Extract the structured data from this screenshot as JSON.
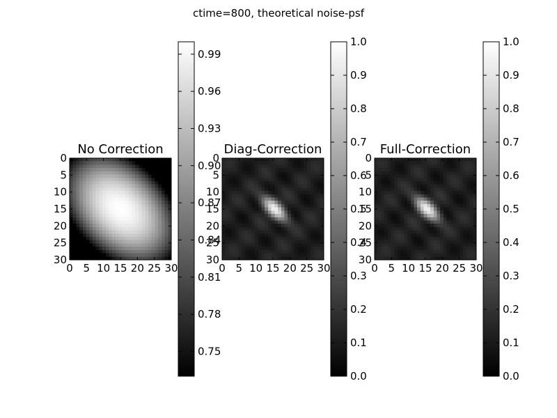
{
  "figure": {
    "suptitle": "ctime=800, theoretical noise-psf"
  },
  "chart_data": [
    {
      "type": "heatmap",
      "title": "No Correction",
      "colormap": "gray",
      "grid_size": [
        31,
        31
      ],
      "x_ticks": [
        0,
        5,
        10,
        15,
        20,
        25,
        30
      ],
      "y_ticks": [
        0,
        5,
        10,
        15,
        20,
        25,
        30
      ],
      "pattern": "broad bright blob centered near (15,15), elongated along the diagonal, values fall off toward the corners",
      "center": [
        15,
        15
      ],
      "value_range": [
        0.73,
        1.0
      ],
      "colorbar": {
        "ticks": [
          "0.75",
          "0.78",
          "0.81",
          "0.84",
          "0.87",
          "0.90",
          "0.93",
          "0.96",
          "0.99"
        ]
      }
    },
    {
      "type": "heatmap",
      "title": "Diag-Correction",
      "colormap": "gray",
      "grid_size": [
        31,
        31
      ],
      "x_ticks": [
        0,
        5,
        10,
        15,
        20,
        25,
        30
      ],
      "y_ticks": [
        0,
        5,
        10,
        15,
        20,
        25,
        30
      ],
      "pattern": "narrow bright elongated peak at center (~15,15) with faint diagonal ripples on dark background",
      "center": [
        15,
        15
      ],
      "value_range": [
        0.0,
        1.0
      ],
      "colorbar": {
        "ticks": [
          "0.0",
          "0.1",
          "0.2",
          "0.3",
          "0.4",
          "0.5",
          "0.6",
          "0.7",
          "0.8",
          "0.9",
          "1.0"
        ]
      }
    },
    {
      "type": "heatmap",
      "title": "Full-Correction",
      "colormap": "gray",
      "grid_size": [
        31,
        31
      ],
      "x_ticks": [
        0,
        5,
        10,
        15,
        20,
        25,
        30
      ],
      "y_ticks": [
        0,
        5,
        10,
        15,
        20,
        25,
        30
      ],
      "pattern": "narrow bright elongated peak at center (~15,15) with faint diagonal ripples on dark background",
      "center": [
        15,
        15
      ],
      "value_range": [
        0.0,
        1.0
      ],
      "colorbar": {
        "ticks": [
          "0.0",
          "0.1",
          "0.2",
          "0.3",
          "0.4",
          "0.5",
          "0.6",
          "0.7",
          "0.8",
          "0.9",
          "1.0"
        ]
      }
    }
  ]
}
